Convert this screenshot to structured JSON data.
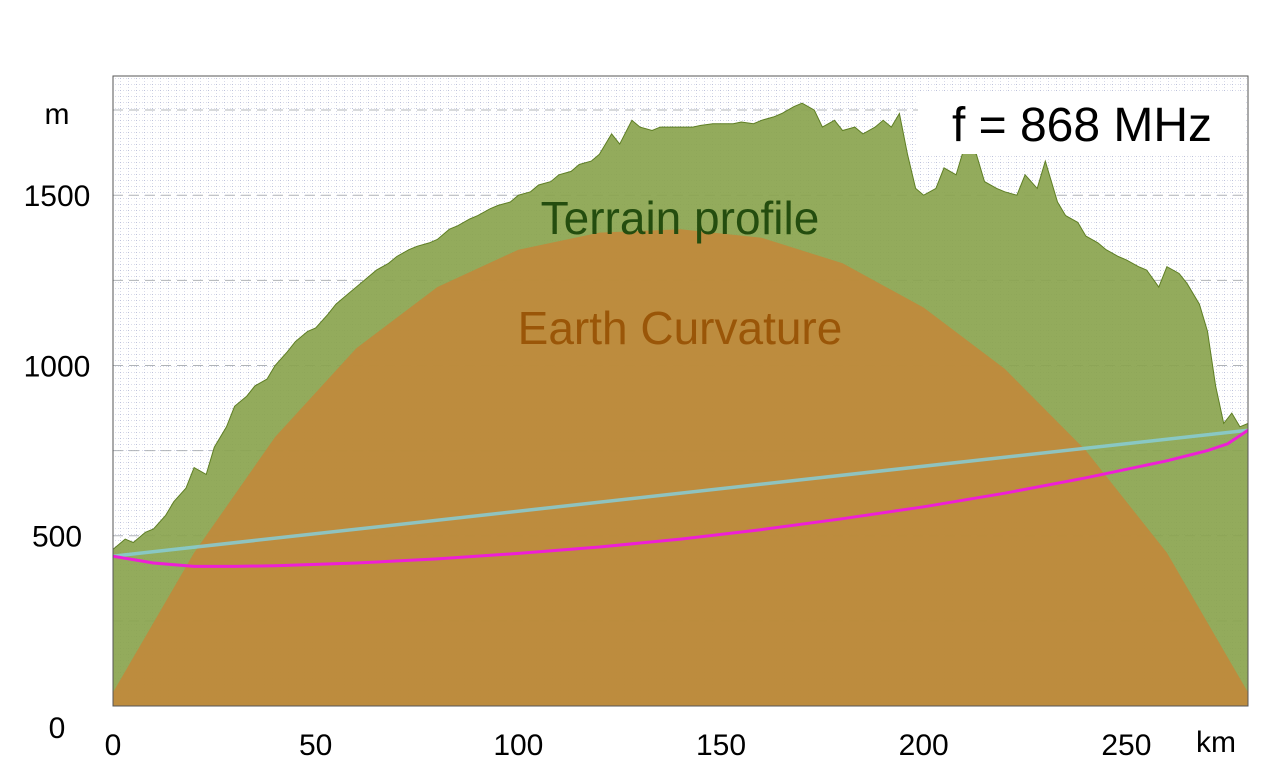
{
  "chart_data": {
    "type": "area",
    "annotations": {
      "frequency": "f = 868 MHz",
      "terrain": "Terrain profile",
      "curvature": "Earth Curvature"
    },
    "x_unit": "km",
    "y_unit": "m",
    "xlim": [
      0,
      280
    ],
    "ylim": [
      0,
      1850
    ],
    "x_ticks": [
      {
        "value": 0,
        "label": "0"
      },
      {
        "value": 50,
        "label": "50"
      },
      {
        "value": 100,
        "label": "100"
      },
      {
        "value": 150,
        "label": "150"
      },
      {
        "value": 200,
        "label": "200"
      },
      {
        "value": 250,
        "label": "250"
      }
    ],
    "y_ticks": [
      {
        "value": 0,
        "label": "0"
      },
      {
        "value": 500,
        "label": "500"
      },
      {
        "value": 1000,
        "label": "1000"
      },
      {
        "value": 1500,
        "label": "1500"
      }
    ],
    "grid": true,
    "series": [
      {
        "key": "terrain",
        "kind": "area",
        "color": "#8aa44e",
        "x": [
          0,
          3,
          5,
          8,
          10,
          13,
          15,
          18,
          20,
          23,
          25,
          28,
          30,
          33,
          35,
          38,
          40,
          43,
          45,
          48,
          50,
          53,
          55,
          58,
          60,
          63,
          65,
          68,
          70,
          73,
          75,
          78,
          80,
          83,
          85,
          88,
          90,
          93,
          95,
          98,
          100,
          103,
          105,
          108,
          110,
          113,
          115,
          118,
          120,
          123,
          125,
          128,
          130,
          133,
          135,
          138,
          140,
          143,
          145,
          148,
          150,
          153,
          155,
          158,
          160,
          163,
          165,
          168,
          170,
          173,
          175,
          178,
          180,
          183,
          185,
          188,
          190,
          192,
          194,
          196,
          198,
          200,
          203,
          205,
          208,
          210,
          213,
          215,
          218,
          220,
          223,
          225,
          228,
          230,
          233,
          235,
          238,
          240,
          243,
          245,
          248,
          250,
          253,
          255,
          258,
          260,
          263,
          265,
          268,
          270,
          272,
          274,
          276,
          278,
          280
        ],
        "values": [
          460,
          490,
          480,
          510,
          520,
          560,
          600,
          640,
          700,
          680,
          760,
          820,
          880,
          910,
          940,
          960,
          1000,
          1040,
          1070,
          1100,
          1110,
          1150,
          1180,
          1210,
          1230,
          1260,
          1280,
          1300,
          1320,
          1340,
          1350,
          1360,
          1370,
          1400,
          1410,
          1430,
          1440,
          1460,
          1470,
          1480,
          1500,
          1510,
          1530,
          1540,
          1560,
          1570,
          1590,
          1600,
          1620,
          1680,
          1650,
          1720,
          1700,
          1690,
          1700,
          1700,
          1700,
          1700,
          1705,
          1710,
          1710,
          1710,
          1715,
          1710,
          1720,
          1730,
          1740,
          1760,
          1770,
          1750,
          1700,
          1720,
          1690,
          1700,
          1680,
          1700,
          1720,
          1700,
          1740,
          1620,
          1520,
          1500,
          1520,
          1580,
          1560,
          1640,
          1620,
          1540,
          1520,
          1510,
          1500,
          1560,
          1520,
          1600,
          1480,
          1440,
          1420,
          1380,
          1360,
          1340,
          1320,
          1310,
          1290,
          1280,
          1230,
          1290,
          1270,
          1240,
          1180,
          1100,
          940,
          830,
          860,
          820,
          830
        ]
      },
      {
        "key": "curvature",
        "kind": "area",
        "color": "#bf8a3c",
        "x": [
          0,
          20,
          40,
          60,
          80,
          100,
          120,
          140,
          160,
          180,
          200,
          220,
          240,
          260,
          280
        ],
        "values": [
          40,
          450,
          790,
          1050,
          1230,
          1340,
          1390,
          1400,
          1375,
          1300,
          1170,
          990,
          750,
          450,
          40
        ]
      },
      {
        "key": "line-of-sight",
        "kind": "line",
        "color": "#87cdd6",
        "x": [
          0,
          280
        ],
        "values": [
          440,
          810
        ]
      },
      {
        "key": "fresnel",
        "kind": "line",
        "color": "#ee1fd6",
        "x": [
          0,
          10,
          20,
          30,
          40,
          60,
          80,
          100,
          120,
          140,
          160,
          180,
          200,
          220,
          240,
          260,
          270,
          275,
          280
        ],
        "values": [
          440,
          420,
          410,
          410,
          412,
          420,
          432,
          448,
          467,
          490,
          518,
          550,
          585,
          625,
          670,
          720,
          750,
          770,
          810
        ]
      }
    ]
  }
}
